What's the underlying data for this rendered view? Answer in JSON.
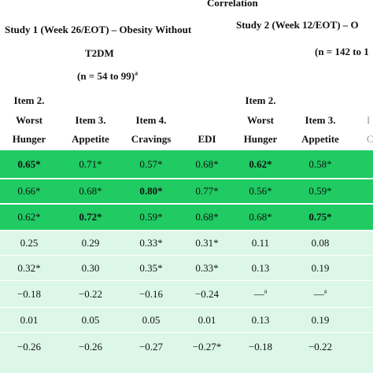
{
  "title": "Correlation",
  "study1": {
    "line1": "Study 1 (Week 26/EOT) – Obesity Without",
    "line2": "T2DM",
    "n": "(n = 54 to 99)",
    "n_sup": "a"
  },
  "study2": {
    "line1": "Study 2 (Week 12/EOT) – O",
    "n": "(n = 142 to 1"
  },
  "columns": {
    "c1": [
      "Item 2.",
      "Worst",
      "Hunger"
    ],
    "c2": [
      "",
      "Item 3.",
      "Appetite"
    ],
    "c3": [
      "",
      "Item 4.",
      "Cravings"
    ],
    "c4": [
      "",
      "",
      "EDI"
    ],
    "c5": [
      "Item 2.",
      "Worst",
      "Hunger"
    ],
    "c6": [
      "",
      "Item 3.",
      "Appetite"
    ],
    "c7": [
      "",
      "I",
      "C"
    ]
  },
  "rows": [
    {
      "style": "green",
      "cells": [
        [
          "0.65*",
          true
        ],
        [
          "0.71*",
          false
        ],
        [
          "0.57*",
          false
        ],
        [
          "0.68*",
          false
        ],
        [
          "0.62*",
          true
        ],
        [
          "0.58*",
          false
        ]
      ]
    },
    {
      "style": "green",
      "cells": [
        [
          "0.66*",
          false
        ],
        [
          "0.68*",
          false
        ],
        [
          "0.80*",
          true
        ],
        [
          "0.77*",
          false
        ],
        [
          "0.56*",
          false
        ],
        [
          "0.59*",
          false
        ]
      ]
    },
    {
      "style": "green",
      "cells": [
        [
          "0.62*",
          false
        ],
        [
          "0.72*",
          true
        ],
        [
          "0.59*",
          false
        ],
        [
          "0.68*",
          false
        ],
        [
          "0.68*",
          false
        ],
        [
          "0.75*",
          true
        ]
      ]
    },
    {
      "style": "light",
      "cells": [
        [
          "0.25",
          false
        ],
        [
          "0.29",
          false
        ],
        [
          "0.33*",
          false
        ],
        [
          "0.31*",
          false
        ],
        [
          "0.11",
          false
        ],
        [
          "0.08",
          false
        ]
      ]
    },
    {
      "style": "light",
      "cells": [
        [
          "0.32*",
          false
        ],
        [
          "0.30",
          false
        ],
        [
          "0.35*",
          false
        ],
        [
          "0.33*",
          false
        ],
        [
          "0.13",
          false
        ],
        [
          "0.19",
          false
        ]
      ]
    },
    {
      "style": "light",
      "cells": [
        [
          "−0.18",
          false
        ],
        [
          "−0.22",
          false
        ],
        [
          "−0.16",
          false
        ],
        [
          "−0.24",
          false
        ],
        [
          "—",
          false,
          "a"
        ],
        [
          "—",
          false,
          "a"
        ]
      ]
    },
    {
      "style": "light",
      "cells": [
        [
          "0.01",
          false
        ],
        [
          "0.05",
          false
        ],
        [
          "0.05",
          false
        ],
        [
          "0.01",
          false
        ],
        [
          "0.13",
          false
        ],
        [
          "0.19",
          false
        ]
      ]
    },
    {
      "style": "light",
      "cells": [
        [
          "−0.26",
          false
        ],
        [
          "−0.26",
          false
        ],
        [
          "−0.27",
          false
        ],
        [
          "−0.27*",
          false
        ],
        [
          "−0.18",
          false
        ],
        [
          "−0.22",
          false
        ]
      ]
    }
  ]
}
